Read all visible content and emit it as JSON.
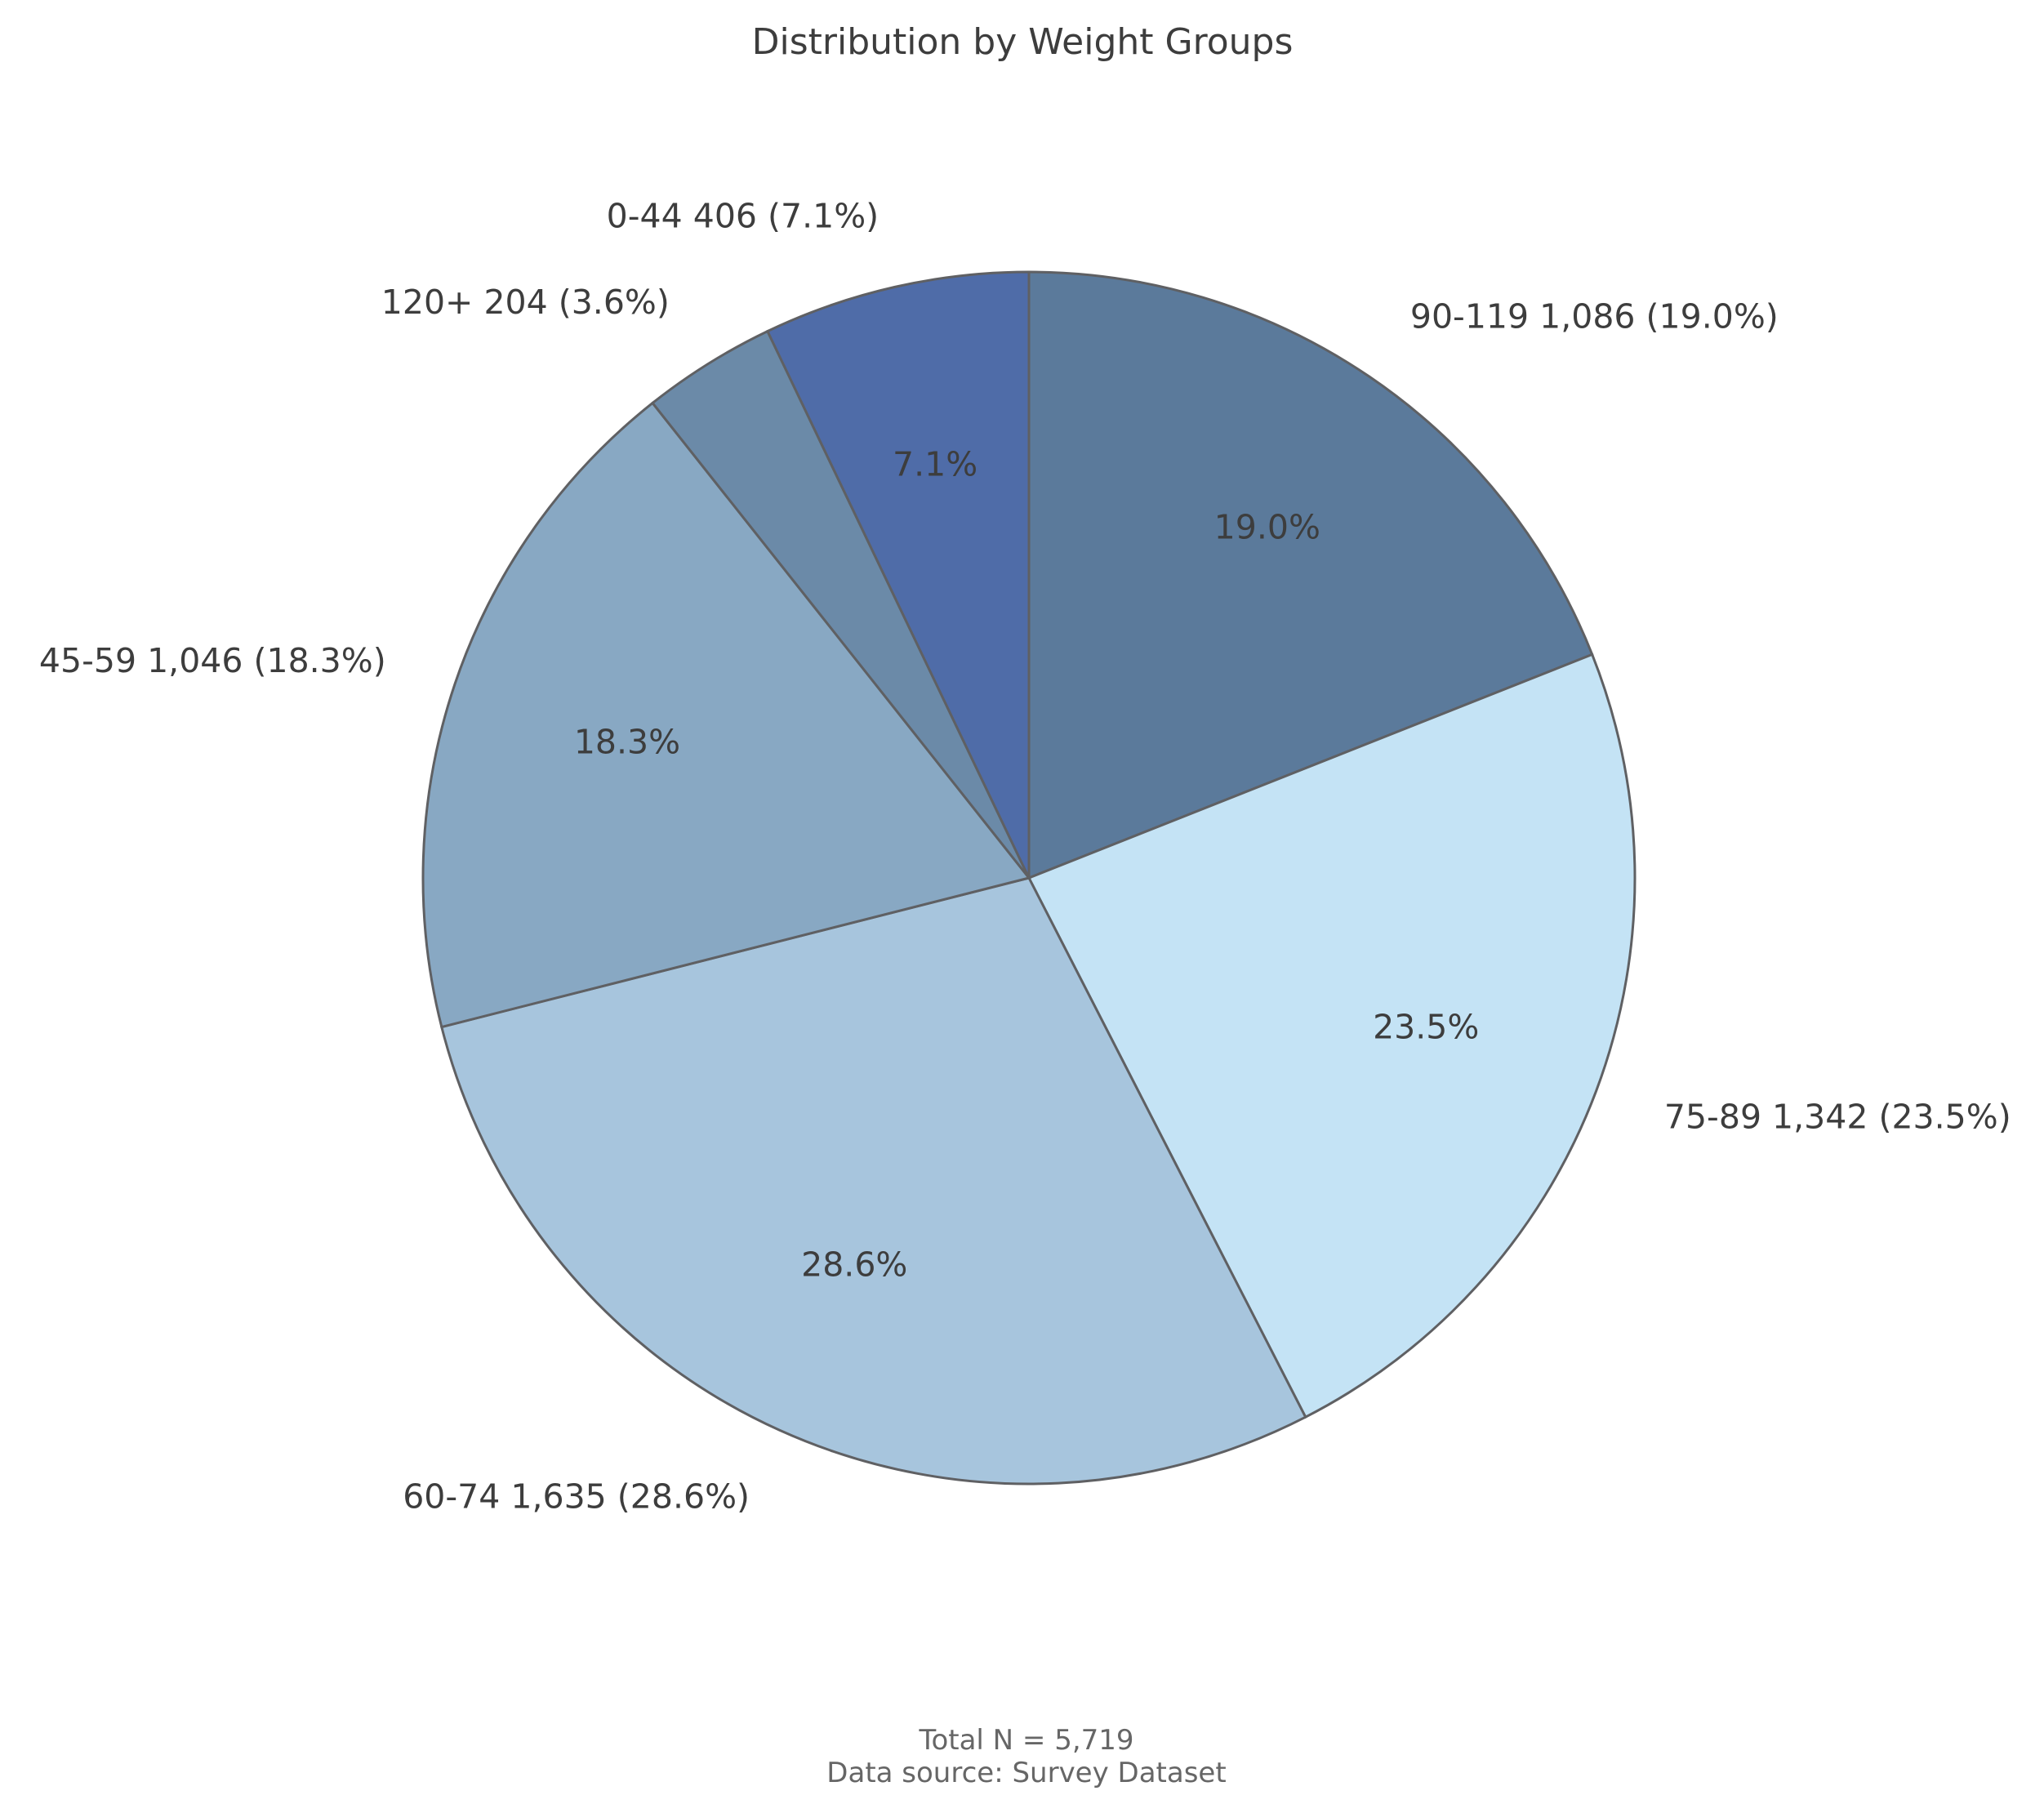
{
  "chart_data": {
    "type": "pie",
    "title": "Distribution by Weight Groups",
    "slices": [
      {
        "label": "90-119",
        "value": 1086,
        "percent": 19.0,
        "outer_text": "90-119 1,086 (19.0%)",
        "inner_text": "19.0%",
        "color": "#5b7a9b"
      },
      {
        "label": "75-89",
        "value": 1342,
        "percent": 23.5,
        "outer_text": "75-89 1,342 (23.5%)",
        "inner_text": "23.5%",
        "color": "#c4e3f5"
      },
      {
        "label": "60-74",
        "value": 1635,
        "percent": 28.6,
        "outer_text": "60-74 1,635 (28.6%)",
        "inner_text": "28.6%",
        "color": "#a7c5dd"
      },
      {
        "label": "45-59",
        "value": 1046,
        "percent": 18.3,
        "outer_text": "45-59 1,046 (18.3%)",
        "inner_text": "18.3%",
        "color": "#88a8c3"
      },
      {
        "label": "120+",
        "value": 204,
        "percent": 3.6,
        "outer_text": "120+ 204 (3.6%)",
        "inner_text": "",
        "color": "#6b8aa8"
      },
      {
        "label": "0-44",
        "value": 406,
        "percent": 7.1,
        "outer_text": "0-44 406 (7.1%)",
        "inner_text": "7.1%",
        "color": "#4f6ca8"
      }
    ],
    "start": "top",
    "direction": "clockwise",
    "edge_color": "#5f6063",
    "footer": {
      "total": "Total N = 5,719",
      "source": "Data source: Survey Dataset"
    }
  }
}
